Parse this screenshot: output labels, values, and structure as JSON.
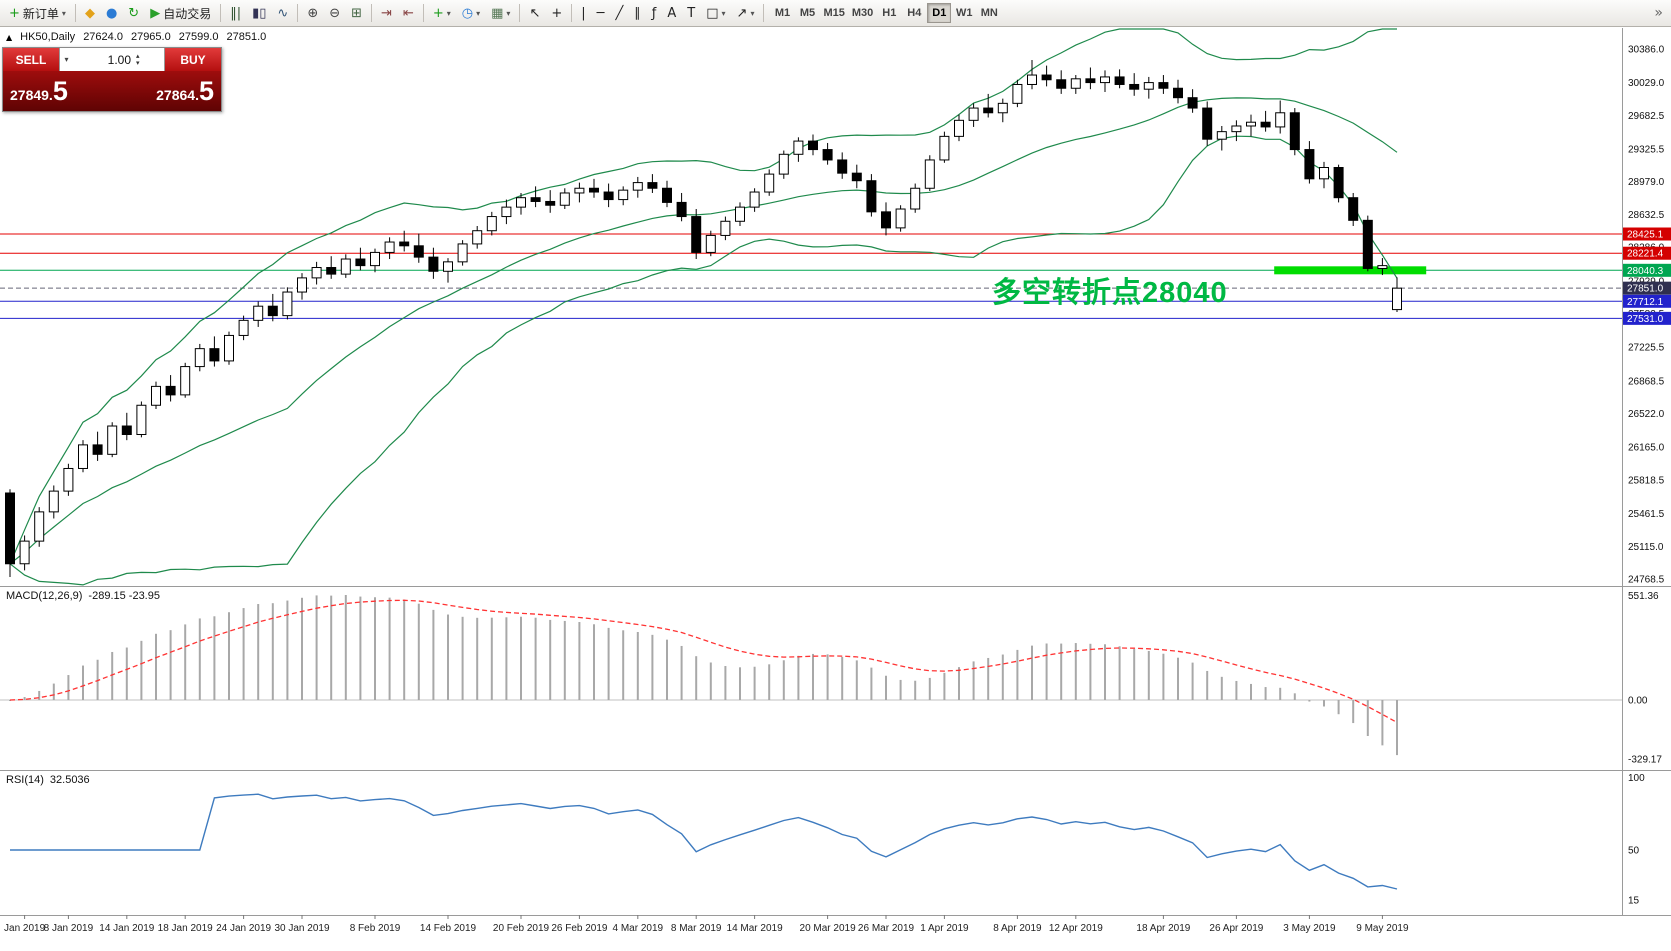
{
  "toolbar": {
    "items": [
      {
        "kind": "button",
        "name": "new-order-button",
        "icon": "order-plus-icon",
        "glyph": "+",
        "glyph_color": "#1a9c1a",
        "label": "新订单",
        "caret": true
      },
      {
        "kind": "sep"
      },
      {
        "kind": "button",
        "name": "metaquotes-button",
        "icon": "diamond-icon",
        "glyph": "◆",
        "glyph_color": "#e3a21a"
      },
      {
        "kind": "button",
        "name": "community-button",
        "icon": "dot-icon",
        "glyph": "●",
        "glyph_color": "#2b7bd4"
      },
      {
        "kind": "button",
        "name": "refresh-button",
        "icon": "refresh-icon",
        "glyph": "↻",
        "glyph_color": "#1a9c1a"
      },
      {
        "kind": "button",
        "name": "autotrade-button",
        "icon": "play-icon",
        "glyph": "▶",
        "glyph_color": "#2aa02a",
        "label": "自动交易"
      },
      {
        "kind": "sep"
      },
      {
        "kind": "button",
        "name": "bar-chart-button",
        "icon": "bar-chart-icon",
        "glyph": "‖|",
        "glyph_color": "#335533"
      },
      {
        "kind": "button",
        "name": "candle-chart-button",
        "icon": "candlestick-icon",
        "glyph": "▮▯",
        "glyph_color": "#333355"
      },
      {
        "kind": "button",
        "name": "line-chart-button",
        "icon": "line-chart-icon",
        "glyph": "∿",
        "glyph_color": "#335577"
      },
      {
        "kind": "sep"
      },
      {
        "kind": "button",
        "name": "zoom-in-button",
        "icon": "zoom-in-icon",
        "glyph": "⊕",
        "glyph_color": "#444444"
      },
      {
        "kind": "button",
        "name": "zoom-out-button",
        "icon": "zoom-out-icon",
        "glyph": "⊖",
        "glyph_color": "#444444"
      },
      {
        "kind": "button",
        "name": "tile-windows-button",
        "icon": "tile-windows-icon",
        "glyph": "⊞",
        "glyph_color": "#446644"
      },
      {
        "kind": "sep"
      },
      {
        "kind": "button",
        "name": "auto-scroll-button",
        "icon": "auto-scroll-icon",
        "glyph": "⇥",
        "glyph_color": "#884444"
      },
      {
        "kind": "button",
        "name": "chart-shift-button",
        "icon": "chart-shift-icon",
        "glyph": "⇤",
        "glyph_color": "#884444"
      },
      {
        "kind": "sep"
      },
      {
        "kind": "button",
        "name": "indicators-button",
        "icon": "indicators-plus-icon",
        "glyph": "+",
        "glyph_color": "#1a9c1a",
        "caret": true
      },
      {
        "kind": "button",
        "name": "periods-button",
        "icon": "clock-icon",
        "glyph": "◷",
        "glyph_color": "#2b7bd4",
        "caret": true
      },
      {
        "kind": "button",
        "name": "templates-button",
        "icon": "template-icon",
        "glyph": "▦",
        "glyph_color": "#557755",
        "caret": true
      },
      {
        "kind": "sep"
      },
      {
        "kind": "button",
        "name": "cursor-button",
        "icon": "cursor-icon",
        "glyph": "↖",
        "glyph_color": "#222222"
      },
      {
        "kind": "button",
        "name": "crosshair-button",
        "icon": "crosshair-icon",
        "glyph": "+",
        "glyph_color": "#222222"
      },
      {
        "kind": "sep"
      },
      {
        "kind": "button",
        "name": "vertical-line-button",
        "icon": "vertical-line-icon",
        "glyph": "|",
        "glyph_color": "#222222"
      },
      {
        "kind": "button",
        "name": "horizontal-line-button",
        "icon": "horizontal-line-icon",
        "glyph": "─",
        "glyph_color": "#222222"
      },
      {
        "kind": "button",
        "name": "trendline-button",
        "icon": "trendline-icon",
        "glyph": "╱",
        "glyph_color": "#222222"
      },
      {
        "kind": "button",
        "name": "channel-button",
        "icon": "channel-icon",
        "glyph": "∥",
        "glyph_color": "#222222"
      },
      {
        "kind": "button",
        "name": "fibonacci-button",
        "icon": "fibonacci-icon",
        "glyph": "ƒ",
        "glyph_color": "#222222"
      },
      {
        "kind": "button",
        "name": "text-button",
        "icon": "text-icon",
        "glyph": "A",
        "glyph_color": "#222222"
      },
      {
        "kind": "button",
        "name": "label-button",
        "icon": "label-icon",
        "glyph": "T",
        "glyph_color": "#222222"
      },
      {
        "kind": "button",
        "name": "shapes-button",
        "icon": "shapes-icon",
        "glyph": "□",
        "glyph_color": "#222222",
        "caret": true
      },
      {
        "kind": "button",
        "name": "arrows-button",
        "icon": "arrow-icon",
        "glyph": "↗",
        "glyph_color": "#222222",
        "caret": true
      },
      {
        "kind": "sep"
      }
    ],
    "timeframes": [
      "M1",
      "M5",
      "M15",
      "M30",
      "H1",
      "H4",
      "D1",
      "W1",
      "MN"
    ],
    "active_timeframe": "D1",
    "overflow_glyph": "»"
  },
  "trade_panel": {
    "sell_label": "SELL",
    "buy_label": "BUY",
    "volume": "1.00",
    "sell_price": {
      "main": "27849.",
      "big": "5"
    },
    "buy_price": {
      "main": "27864.",
      "big": "5"
    }
  },
  "chart_header": {
    "trend_glyph": "▲",
    "symbol": "HK50,Daily",
    "open": "27624.0",
    "high": "27965.0",
    "low": "27599.0",
    "close": "27851.0"
  },
  "annotation": {
    "text": "多空转折点28040",
    "color": "#00b843"
  },
  "macd_label": {
    "name": "MACD(12,26,9)",
    "values": "-289.15 -23.95"
  },
  "rsi_label": {
    "name": "RSI(14)",
    "value": "32.5036"
  },
  "chart_data": {
    "type": "candlestick",
    "symbol": "HK50",
    "timeframe": "Daily",
    "ylim": [
      24768.5,
      30386.0
    ],
    "price_axis_ticks": [
      30386.0,
      30029.0,
      29682.5,
      29325.5,
      28979.0,
      28632.5,
      28286.0,
      27929.0,
      27582.5,
      27225.5,
      26868.5,
      26522.0,
      26165.0,
      25818.5,
      25461.5,
      25115.0,
      24768.5
    ],
    "candles": [
      [
        25680,
        25720,
        24790,
        24930
      ],
      [
        24930,
        25230,
        24860,
        25170
      ],
      [
        25170,
        25530,
        25110,
        25480
      ],
      [
        25480,
        25760,
        25410,
        25700
      ],
      [
        25700,
        25990,
        25650,
        25940
      ],
      [
        25940,
        26240,
        25900,
        26190
      ],
      [
        26190,
        26330,
        26020,
        26090
      ],
      [
        26090,
        26430,
        26060,
        26390
      ],
      [
        26390,
        26530,
        26240,
        26300
      ],
      [
        26300,
        26650,
        26270,
        26610
      ],
      [
        26610,
        26860,
        26570,
        26810
      ],
      [
        26810,
        26930,
        26650,
        26720
      ],
      [
        26720,
        27060,
        26690,
        27020
      ],
      [
        27020,
        27260,
        26970,
        27210
      ],
      [
        27210,
        27340,
        27020,
        27080
      ],
      [
        27080,
        27390,
        27040,
        27350
      ],
      [
        27350,
        27560,
        27300,
        27510
      ],
      [
        27510,
        27710,
        27440,
        27660
      ],
      [
        27660,
        27790,
        27500,
        27560
      ],
      [
        27560,
        27860,
        27520,
        27810
      ],
      [
        27810,
        28010,
        27730,
        27960
      ],
      [
        27960,
        28130,
        27890,
        28070
      ],
      [
        28070,
        28190,
        27950,
        28000
      ],
      [
        28000,
        28210,
        27960,
        28160
      ],
      [
        28160,
        28280,
        28040,
        28090
      ],
      [
        28090,
        28270,
        28020,
        28230
      ],
      [
        28230,
        28390,
        28160,
        28340
      ],
      [
        28340,
        28460,
        28240,
        28300
      ],
      [
        28300,
        28430,
        28120,
        28180
      ],
      [
        28180,
        28280,
        27950,
        28030
      ],
      [
        28030,
        28170,
        27910,
        28130
      ],
      [
        28130,
        28360,
        28090,
        28320
      ],
      [
        28320,
        28510,
        28270,
        28460
      ],
      [
        28460,
        28660,
        28410,
        28610
      ],
      [
        28610,
        28790,
        28530,
        28710
      ],
      [
        28710,
        28860,
        28630,
        28810
      ],
      [
        28810,
        28930,
        28710,
        28770
      ],
      [
        28770,
        28890,
        28650,
        28730
      ],
      [
        28730,
        28910,
        28690,
        28860
      ],
      [
        28860,
        28970,
        28760,
        28910
      ],
      [
        28910,
        29010,
        28810,
        28870
      ],
      [
        28870,
        28960,
        28710,
        28790
      ],
      [
        28790,
        28930,
        28730,
        28890
      ],
      [
        28890,
        29030,
        28810,
        28970
      ],
      [
        28970,
        29060,
        28860,
        28910
      ],
      [
        28910,
        28990,
        28710,
        28760
      ],
      [
        28760,
        28860,
        28560,
        28610
      ],
      [
        28610,
        28690,
        28160,
        28230
      ],
      [
        28230,
        28460,
        28190,
        28410
      ],
      [
        28410,
        28610,
        28360,
        28560
      ],
      [
        28560,
        28760,
        28510,
        28710
      ],
      [
        28710,
        28910,
        28660,
        28870
      ],
      [
        28870,
        29110,
        28830,
        29060
      ],
      [
        29060,
        29310,
        29010,
        29270
      ],
      [
        29270,
        29450,
        29190,
        29410
      ],
      [
        29410,
        29480,
        29260,
        29320
      ],
      [
        29320,
        29390,
        29160,
        29210
      ],
      [
        29210,
        29290,
        29010,
        29070
      ],
      [
        29070,
        29160,
        28910,
        28990
      ],
      [
        28990,
        29060,
        28610,
        28660
      ],
      [
        28660,
        28760,
        28410,
        28490
      ],
      [
        28490,
        28730,
        28450,
        28690
      ],
      [
        28690,
        28960,
        28650,
        28910
      ],
      [
        28910,
        29260,
        28880,
        29210
      ],
      [
        29210,
        29510,
        29180,
        29460
      ],
      [
        29460,
        29690,
        29410,
        29630
      ],
      [
        29630,
        29810,
        29560,
        29760
      ],
      [
        29760,
        29910,
        29660,
        29710
      ],
      [
        29710,
        29860,
        29610,
        29810
      ],
      [
        29810,
        30060,
        29770,
        30010
      ],
      [
        30010,
        30270,
        29960,
        30110
      ],
      [
        30110,
        30210,
        29990,
        30060
      ],
      [
        30060,
        30160,
        29910,
        29970
      ],
      [
        29970,
        30110,
        29910,
        30070
      ],
      [
        30070,
        30190,
        29960,
        30030
      ],
      [
        30030,
        30160,
        29930,
        30090
      ],
      [
        30090,
        30170,
        29970,
        30010
      ],
      [
        30010,
        30130,
        29890,
        29960
      ],
      [
        29960,
        30090,
        29860,
        30030
      ],
      [
        30030,
        30110,
        29910,
        29970
      ],
      [
        29970,
        30060,
        29810,
        29870
      ],
      [
        29870,
        29960,
        29710,
        29760
      ],
      [
        29760,
        29830,
        29360,
        29430
      ],
      [
        29430,
        29570,
        29310,
        29510
      ],
      [
        29510,
        29630,
        29410,
        29570
      ],
      [
        29570,
        29690,
        29460,
        29610
      ],
      [
        29610,
        29730,
        29510,
        29560
      ],
      [
        29560,
        29840,
        29490,
        29710
      ],
      [
        29710,
        29760,
        29260,
        29320
      ],
      [
        29320,
        29410,
        28960,
        29010
      ],
      [
        29010,
        29190,
        28910,
        29130
      ],
      [
        29130,
        29160,
        28760,
        28810
      ],
      [
        28810,
        28860,
        28510,
        28570
      ],
      [
        28570,
        28620,
        28030,
        28060
      ],
      [
        28060,
        28170,
        27990,
        28090
      ],
      [
        27624,
        27965,
        27599,
        27851
      ]
    ],
    "hlines": [
      {
        "price": 28425.1,
        "color": "#e60000",
        "label": "28425.1",
        "label_bg": "#d40000"
      },
      {
        "price": 28221.4,
        "color": "#e60000",
        "label": "28221.4",
        "label_bg": "#d40000"
      },
      {
        "price": 28040.3,
        "color": "#00a651",
        "label": "28040.3",
        "label_bg": "#00a651"
      },
      {
        "price": 27851.0,
        "color": "#666677",
        "label": "27851.0",
        "label_bg": "#2f2f4f",
        "style": "dashed"
      },
      {
        "price": 27712.1,
        "color": "#2222cc",
        "label": "27712.1",
        "label_bg": "#2222cc"
      },
      {
        "price": 27531.0,
        "color": "#2222cc",
        "label": "27531.0",
        "label_bg": "#2222cc"
      }
    ],
    "highlight": {
      "price": 28040.3,
      "from_index": 87,
      "to_index": 97,
      "color": "#00dd00",
      "thickness": 8
    },
    "bollinger": {
      "period": 20,
      "deviation": 2,
      "color": "#1f8a4c"
    },
    "macd": {
      "fast": 12,
      "slow": 26,
      "signal": 9,
      "hist_color": "#a8a8a8",
      "signal_color": "#ff3333",
      "axis_labels": [
        "551.36",
        "0.00",
        "-329.17"
      ]
    },
    "rsi": {
      "period": 14,
      "color": "#3e7bbf",
      "axis_labels": [
        "100",
        "50",
        "15"
      ]
    },
    "date_labels": [
      {
        "label": "Jan 2019",
        "index": 1
      },
      {
        "label": "8 Jan 2019",
        "index": 4
      },
      {
        "label": "14 Jan 2019",
        "index": 8
      },
      {
        "label": "18 Jan 2019",
        "index": 12
      },
      {
        "label": "24 Jan 2019",
        "index": 16
      },
      {
        "label": "30 Jan 2019",
        "index": 20
      },
      {
        "label": "8 Feb 2019",
        "index": 25
      },
      {
        "label": "14 Feb 2019",
        "index": 30
      },
      {
        "label": "20 Feb 2019",
        "index": 35
      },
      {
        "label": "26 Feb 2019",
        "index": 39
      },
      {
        "label": "4 Mar 2019",
        "index": 43
      },
      {
        "label": "8 Mar 2019",
        "index": 47
      },
      {
        "label": "14 Mar 2019",
        "index": 51
      },
      {
        "label": "20 Mar 2019",
        "index": 56
      },
      {
        "label": "26 Mar 2019",
        "index": 60
      },
      {
        "label": "1 Apr 2019",
        "index": 64
      },
      {
        "label": "8 Apr 2019",
        "index": 69
      },
      {
        "label": "12 Apr 2019",
        "index": 73
      },
      {
        "label": "18 Apr 2019",
        "index": 79
      },
      {
        "label": "26 Apr 2019",
        "index": 84
      },
      {
        "label": "3 May 2019",
        "index": 89
      },
      {
        "label": "9 May 2019",
        "index": 94
      }
    ]
  }
}
